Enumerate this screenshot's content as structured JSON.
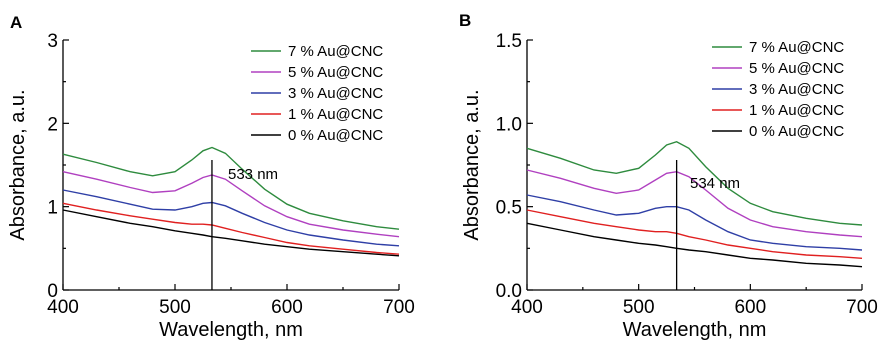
{
  "chart_data": [
    {
      "type": "line",
      "panel": "A",
      "xlabel": "Wavelength, nm",
      "ylabel": "Absorbance, a.u.",
      "xlim": [
        400,
        700
      ],
      "ylim": [
        0,
        3
      ],
      "xticks": [
        "400",
        "500",
        "600",
        "700"
      ],
      "yticks": [
        "0",
        "1",
        "2",
        "3"
      ],
      "xtick_values": [
        400,
        500,
        600,
        700
      ],
      "ytick_values": [
        0,
        1,
        2,
        3
      ],
      "marker_x": 533,
      "annotation": "533 nm",
      "grid": false,
      "legend_position": "top-right",
      "x": [
        400,
        430,
        460,
        480,
        500,
        515,
        525,
        533,
        545,
        560,
        580,
        600,
        620,
        650,
        680,
        700
      ],
      "series": [
        {
          "name": "7 % Au@CNC",
          "color": "#2e8b3e",
          "values": [
            1.63,
            1.53,
            1.42,
            1.37,
            1.42,
            1.56,
            1.67,
            1.71,
            1.64,
            1.45,
            1.21,
            1.03,
            0.92,
            0.83,
            0.76,
            0.73
          ]
        },
        {
          "name": "5 % Au@CNC",
          "color": "#b040c0",
          "values": [
            1.42,
            1.33,
            1.23,
            1.17,
            1.19,
            1.28,
            1.35,
            1.38,
            1.33,
            1.19,
            1.01,
            0.88,
            0.79,
            0.72,
            0.67,
            0.64
          ]
        },
        {
          "name": "3 % Au@CNC",
          "color": "#2f3fa6",
          "values": [
            1.2,
            1.12,
            1.03,
            0.97,
            0.96,
            1.0,
            1.04,
            1.05,
            1.01,
            0.92,
            0.81,
            0.72,
            0.66,
            0.6,
            0.55,
            0.53
          ]
        },
        {
          "name": "1 % Au@CNC",
          "color": "#e02020",
          "values": [
            1.04,
            0.96,
            0.89,
            0.85,
            0.81,
            0.79,
            0.79,
            0.78,
            0.74,
            0.69,
            0.63,
            0.57,
            0.53,
            0.49,
            0.45,
            0.43
          ]
        },
        {
          "name": "0 % Au@CNC",
          "color": "#000000",
          "values": [
            0.96,
            0.88,
            0.8,
            0.76,
            0.71,
            0.68,
            0.66,
            0.64,
            0.62,
            0.59,
            0.55,
            0.52,
            0.49,
            0.46,
            0.43,
            0.41
          ]
        }
      ]
    },
    {
      "type": "line",
      "panel": "B",
      "xlabel": "Wavelength, nm",
      "ylabel": "Absorbance, a.u.",
      "xlim": [
        400,
        700
      ],
      "ylim": [
        0,
        1.5
      ],
      "xticks": [
        "400",
        "500",
        "600",
        "700"
      ],
      "yticks": [
        "0.0",
        "0.5",
        "1.0",
        "1.5"
      ],
      "xtick_values": [
        400,
        500,
        600,
        700
      ],
      "ytick_values": [
        0,
        0.5,
        1.0,
        1.5
      ],
      "marker_x": 534,
      "annotation": "534 nm",
      "grid": false,
      "legend_position": "top-right",
      "x": [
        400,
        430,
        460,
        480,
        500,
        515,
        525,
        534,
        545,
        560,
        580,
        600,
        620,
        650,
        680,
        700
      ],
      "series": [
        {
          "name": "7 % Au@CNC",
          "color": "#2e8b3e",
          "values": [
            0.85,
            0.79,
            0.72,
            0.7,
            0.73,
            0.81,
            0.87,
            0.89,
            0.85,
            0.74,
            0.61,
            0.52,
            0.47,
            0.43,
            0.4,
            0.39
          ]
        },
        {
          "name": "5 % Au@CNC",
          "color": "#b040c0",
          "values": [
            0.72,
            0.67,
            0.61,
            0.58,
            0.6,
            0.66,
            0.7,
            0.71,
            0.68,
            0.6,
            0.49,
            0.42,
            0.38,
            0.35,
            0.33,
            0.32
          ]
        },
        {
          "name": "3 % Au@CNC",
          "color": "#2f3fa6",
          "values": [
            0.57,
            0.53,
            0.48,
            0.45,
            0.46,
            0.49,
            0.5,
            0.5,
            0.48,
            0.42,
            0.35,
            0.3,
            0.28,
            0.26,
            0.25,
            0.24
          ]
        },
        {
          "name": "1 % Au@CNC",
          "color": "#e02020",
          "values": [
            0.48,
            0.44,
            0.4,
            0.38,
            0.36,
            0.35,
            0.35,
            0.34,
            0.32,
            0.3,
            0.27,
            0.25,
            0.23,
            0.21,
            0.2,
            0.19
          ]
        },
        {
          "name": "0 % Au@CNC",
          "color": "#000000",
          "values": [
            0.4,
            0.36,
            0.32,
            0.3,
            0.28,
            0.27,
            0.26,
            0.25,
            0.24,
            0.23,
            0.21,
            0.19,
            0.18,
            0.16,
            0.15,
            0.14
          ]
        }
      ]
    }
  ]
}
